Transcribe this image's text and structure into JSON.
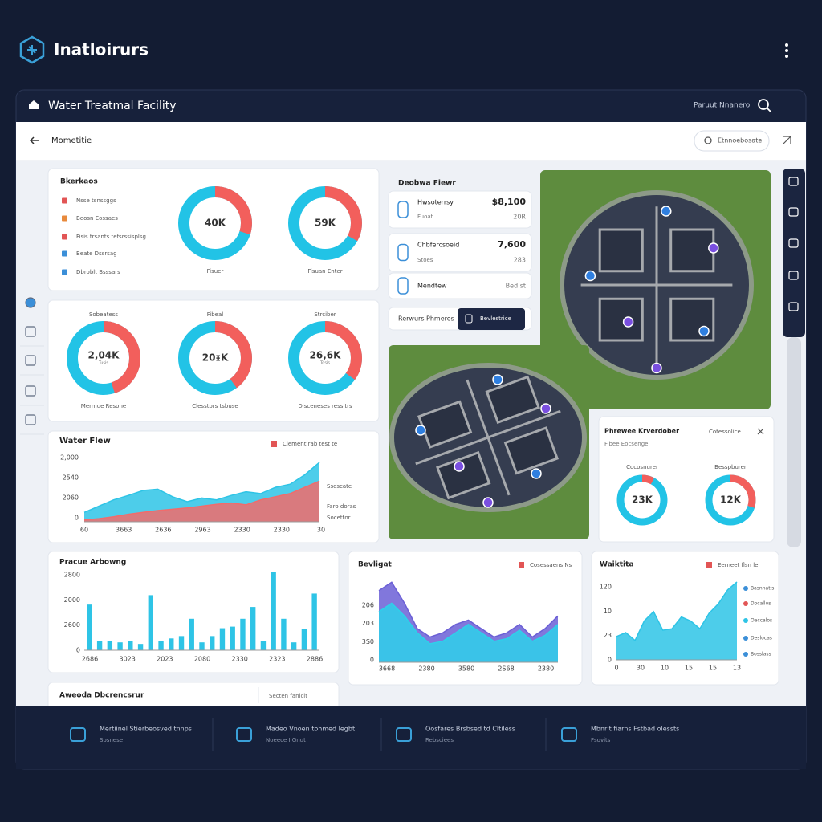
{
  "app": {
    "title": "Inatloirurs"
  },
  "window": {
    "title": "Water Treatmal Facility",
    "user": "Paruut Nnanero"
  },
  "toolbar": {
    "page": "Mometitie",
    "search": "Etnnoebosate"
  },
  "summary": {
    "title": "Bkerkaos",
    "items": [
      "Nsse tsnssggs",
      "Beosn Eossaes",
      "Fisis trsants tefsrssisplsg",
      "Beate Dssrsag",
      "Dbroblt Bsssars"
    ],
    "donuts": [
      {
        "label": "40K",
        "caption": "Fisuer",
        "share": 30
      },
      {
        "label": "59K",
        "caption": "Fisuan Enter",
        "share": 33
      }
    ]
  },
  "gauges": [
    {
      "title": "Sobeatess",
      "label": "2,04K",
      "sub": "Tusis",
      "caption": "Mermue Resone",
      "share": 45
    },
    {
      "title": "Fibeal",
      "label": "20ᵻK",
      "sub": "",
      "caption": "Clesstors tsbuse",
      "share": 40
    },
    {
      "title": "Strciber",
      "label": "26,6K",
      "sub": "Tosis",
      "caption": "Disceneses ressitrs",
      "share": 35
    }
  ],
  "flow": {
    "title": "Water Flew",
    "note": "Clement rab test te",
    "legend": [
      "Ssescate",
      "Faro doras",
      "Socettor"
    ],
    "y_labels": [
      "2,000",
      "2540",
      "2060",
      "0"
    ],
    "x_labels": [
      "60",
      "3663",
      "2636",
      "2963",
      "2330",
      "2330",
      "30"
    ],
    "ylim": [
      0,
      100
    ],
    "series": [
      {
        "color": "#2ec4e6",
        "values": [
          15,
          25,
          35,
          42,
          50,
          52,
          40,
          32,
          38,
          35,
          42,
          48,
          45,
          55,
          60,
          75,
          95
        ]
      },
      {
        "color": "#f26b6b",
        "values": [
          3,
          5,
          8,
          12,
          15,
          18,
          20,
          22,
          25,
          28,
          30,
          27,
          35,
          40,
          45,
          55,
          65
        ]
      }
    ]
  },
  "bars": {
    "title": "Pracue Arbowng",
    "y_labels": [
      "2800",
      "2000",
      "2600",
      "0"
    ],
    "x_labels": [
      "2686",
      "3023",
      "2023",
      "2080",
      "2330",
      "2323",
      "2886"
    ],
    "ylim": [
      0,
      100
    ],
    "color": "#2ec4e6",
    "values": [
      58,
      12,
      12,
      10,
      12,
      8,
      70,
      12,
      15,
      18,
      40,
      10,
      18,
      28,
      30,
      40,
      55,
      12,
      100,
      40,
      10,
      27,
      72
    ]
  },
  "footer_panel": {
    "title": "Aweoda Dbcrencsrur",
    "link": "Secten fanicit"
  },
  "bev": {
    "title": "Bevligat",
    "note": "Cosessaens Ns",
    "y_labels": [
      "206",
      "203",
      "3S0",
      "0"
    ],
    "x_labels": [
      "3668",
      "2380",
      "3580",
      "2S68",
      "2380"
    ],
    "ylim": [
      0,
      100
    ],
    "series": [
      {
        "color": "#6b5fd6",
        "values": [
          85,
          95,
          70,
          40,
          30,
          35,
          45,
          50,
          40,
          30,
          35,
          45,
          30,
          40,
          55
        ]
      },
      {
        "color": "#2ed0ea",
        "values": [
          60,
          70,
          55,
          35,
          22,
          25,
          35,
          45,
          35,
          25,
          28,
          38,
          25,
          32,
          45
        ]
      }
    ]
  },
  "waik": {
    "title": "Waiktita",
    "note": "Eerneet flsn le",
    "y_labels": [
      "120",
      "10",
      "23",
      "0"
    ],
    "x_labels": [
      "0",
      "30",
      "10",
      "15",
      "15",
      "13"
    ],
    "ylim": [
      0,
      100
    ],
    "legend": [
      "Basnnatis",
      "Docallos",
      "Oaccalos",
      "Deslocas",
      "Bosslass"
    ],
    "series": [
      {
        "color": "#2ec4e6",
        "values": [
          30,
          35,
          25,
          50,
          62,
          38,
          40,
          55,
          50,
          40,
          60,
          72,
          90,
          100
        ]
      }
    ]
  },
  "overview": {
    "title": "Deobwa Fiewr",
    "cards": [
      {
        "name": "Hwsoterrsy",
        "sub": "Fuoat",
        "value": "$8,100",
        "extra": "20R"
      },
      {
        "name": "Chbfercsoeid",
        "sub": "Stoes",
        "value": "7,600",
        "extra": "283"
      },
      {
        "name": "Mendtew",
        "sub": "",
        "value": "",
        "extra": "Bed st"
      }
    ],
    "link": "Rerwurs Phmeros",
    "button": "Bevlestrice"
  },
  "exchange": {
    "title": "Phrewee Krverdober",
    "sub": "Fibee Eocsenge",
    "action": "Cotessolice",
    "donuts": [
      {
        "title": "Cocosnurer",
        "label": "23K",
        "share": 8
      },
      {
        "title": "Besspburer",
        "label": "12K",
        "share": 30
      }
    ]
  },
  "footer": [
    {
      "title": "Mertiinel Stierbeosved tnnps",
      "sub": "Sosnese"
    },
    {
      "title": "Madeo Vnoen tohmed legbt",
      "sub": "Noeece I Gnut"
    },
    {
      "title": "Oosfares Brsbsed td Cltiless",
      "sub": "Rebsciees"
    },
    {
      "title": "Mbnrit fiarns Fstbad olessts",
      "sub": "Fsovits"
    }
  ]
}
